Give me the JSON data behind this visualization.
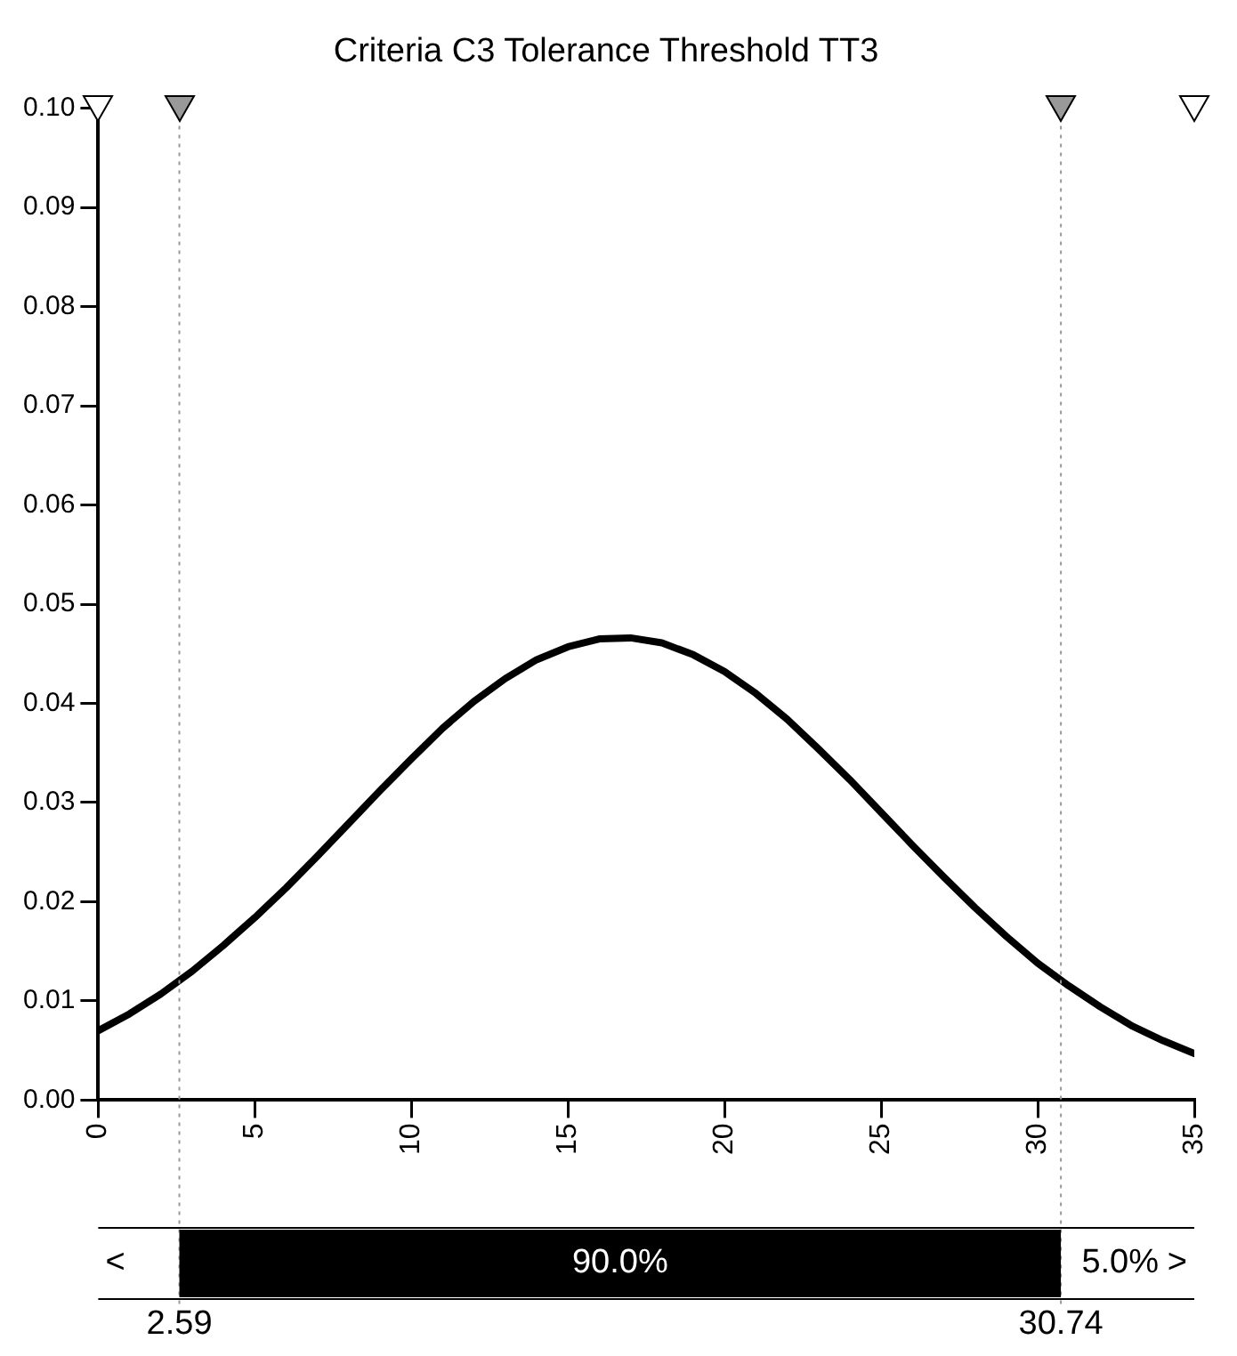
{
  "chart_data": {
    "type": "line",
    "title": "Criteria C3 Tolerance Threshold TT3",
    "x": [
      0,
      1,
      2,
      3,
      4,
      5,
      6,
      7,
      8,
      9,
      10,
      11,
      12,
      13,
      14,
      15,
      16,
      17,
      18,
      19,
      20,
      21,
      22,
      23,
      24,
      25,
      26,
      27,
      28,
      29,
      30,
      31,
      32,
      33,
      34,
      35
    ],
    "series": [
      {
        "color": "#000000",
        "values": [
          0.007,
          0.0087,
          0.0107,
          0.013,
          0.0156,
          0.0184,
          0.0214,
          0.0246,
          0.0279,
          0.0312,
          0.0344,
          0.0375,
          0.0402,
          0.0425,
          0.0444,
          0.0457,
          0.0465,
          0.0466,
          0.0461,
          0.0449,
          0.0432,
          0.041,
          0.0384,
          0.0354,
          0.0323,
          0.029,
          0.0257,
          0.0225,
          0.0194,
          0.0165,
          0.0138,
          0.0115,
          0.0094,
          0.0075,
          0.006,
          0.0047
        ]
      }
    ],
    "xlim": [
      0,
      35
    ],
    "xticks": [
      0,
      5,
      10,
      15,
      20,
      25,
      30,
      35
    ],
    "ylim": [
      0,
      0.1
    ],
    "yticks": [
      {
        "value": 0,
        "label": "0.00"
      },
      {
        "value": 0.01,
        "label": "0.01"
      },
      {
        "value": 0.02,
        "label": "0.02"
      },
      {
        "value": 0.03,
        "label": "0.03"
      },
      {
        "value": 0.04,
        "label": "0.04"
      },
      {
        "value": 0.05,
        "label": "0.05"
      },
      {
        "value": 0.06,
        "label": "0.06"
      },
      {
        "value": 0.07,
        "label": "0.07"
      },
      {
        "value": 0.08,
        "label": "0.08"
      },
      {
        "value": 0.09,
        "label": "0.09"
      },
      {
        "value": 0.1,
        "label": "0.10"
      }
    ],
    "ref_lines": [
      {
        "axis": "x",
        "value": 2.59,
        "label": "2.59",
        "color": "#999999",
        "line_style": "dotted"
      },
      {
        "axis": "x",
        "value": 30.74,
        "label": "30.74",
        "color": "#999999",
        "line_style": "dotted"
      }
    ],
    "annotations": [
      "<",
      "90.0%",
      "5.0%",
      ">"
    ],
    "grid": false,
    "legend": false,
    "marker": "none",
    "line_style": "solid"
  }
}
